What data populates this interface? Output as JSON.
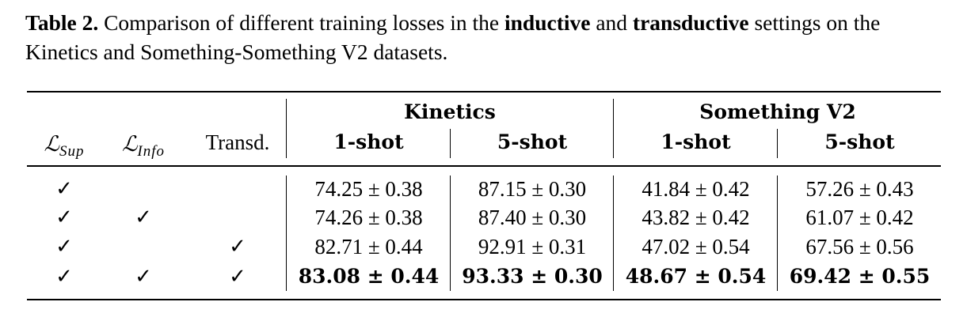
{
  "caption": {
    "label": "Table 2.",
    "text_1": " Comparison of different training losses in the ",
    "kw_1": "inductive",
    "text_2": " and ",
    "kw_2": "transductive",
    "text_3": " settings on the Kinetics and Something-Something V2 datasets."
  },
  "table": {
    "col_headers": {
      "sup_symbol": "ℒ",
      "sup_sub": "Sup",
      "info_symbol": "ℒ",
      "info_sub": "Info",
      "transd": "Transd."
    },
    "groups": [
      "Kinetics",
      "Something V2"
    ],
    "shots": [
      "1-shot",
      "5-shot",
      "1-shot",
      "5-shot"
    ],
    "check_glyph": "✓",
    "rows": [
      {
        "sup": "✓",
        "info": "",
        "transd": "",
        "values": [
          "74.25 ± 0.38",
          "87.15 ± 0.30",
          "41.84 ± 0.42",
          "57.26 ± 0.43"
        ],
        "bold": false
      },
      {
        "sup": "✓",
        "info": "✓",
        "transd": "",
        "values": [
          "74.26 ± 0.38",
          "87.40 ± 0.30",
          "43.82 ± 0.42",
          "61.07 ± 0.42"
        ],
        "bold": false
      },
      {
        "sup": "✓",
        "info": "",
        "transd": "✓",
        "values": [
          "82.71 ± 0.44",
          "92.91 ± 0.31",
          "47.02 ± 0.54",
          "67.56 ± 0.56"
        ],
        "bold": false
      },
      {
        "sup": "✓",
        "info": "✓",
        "transd": "✓",
        "values": [
          "83.08 ± 0.44",
          "93.33 ± 0.30",
          "48.67 ± 0.54",
          "69.42 ± 0.55"
        ],
        "bold": true
      }
    ]
  }
}
